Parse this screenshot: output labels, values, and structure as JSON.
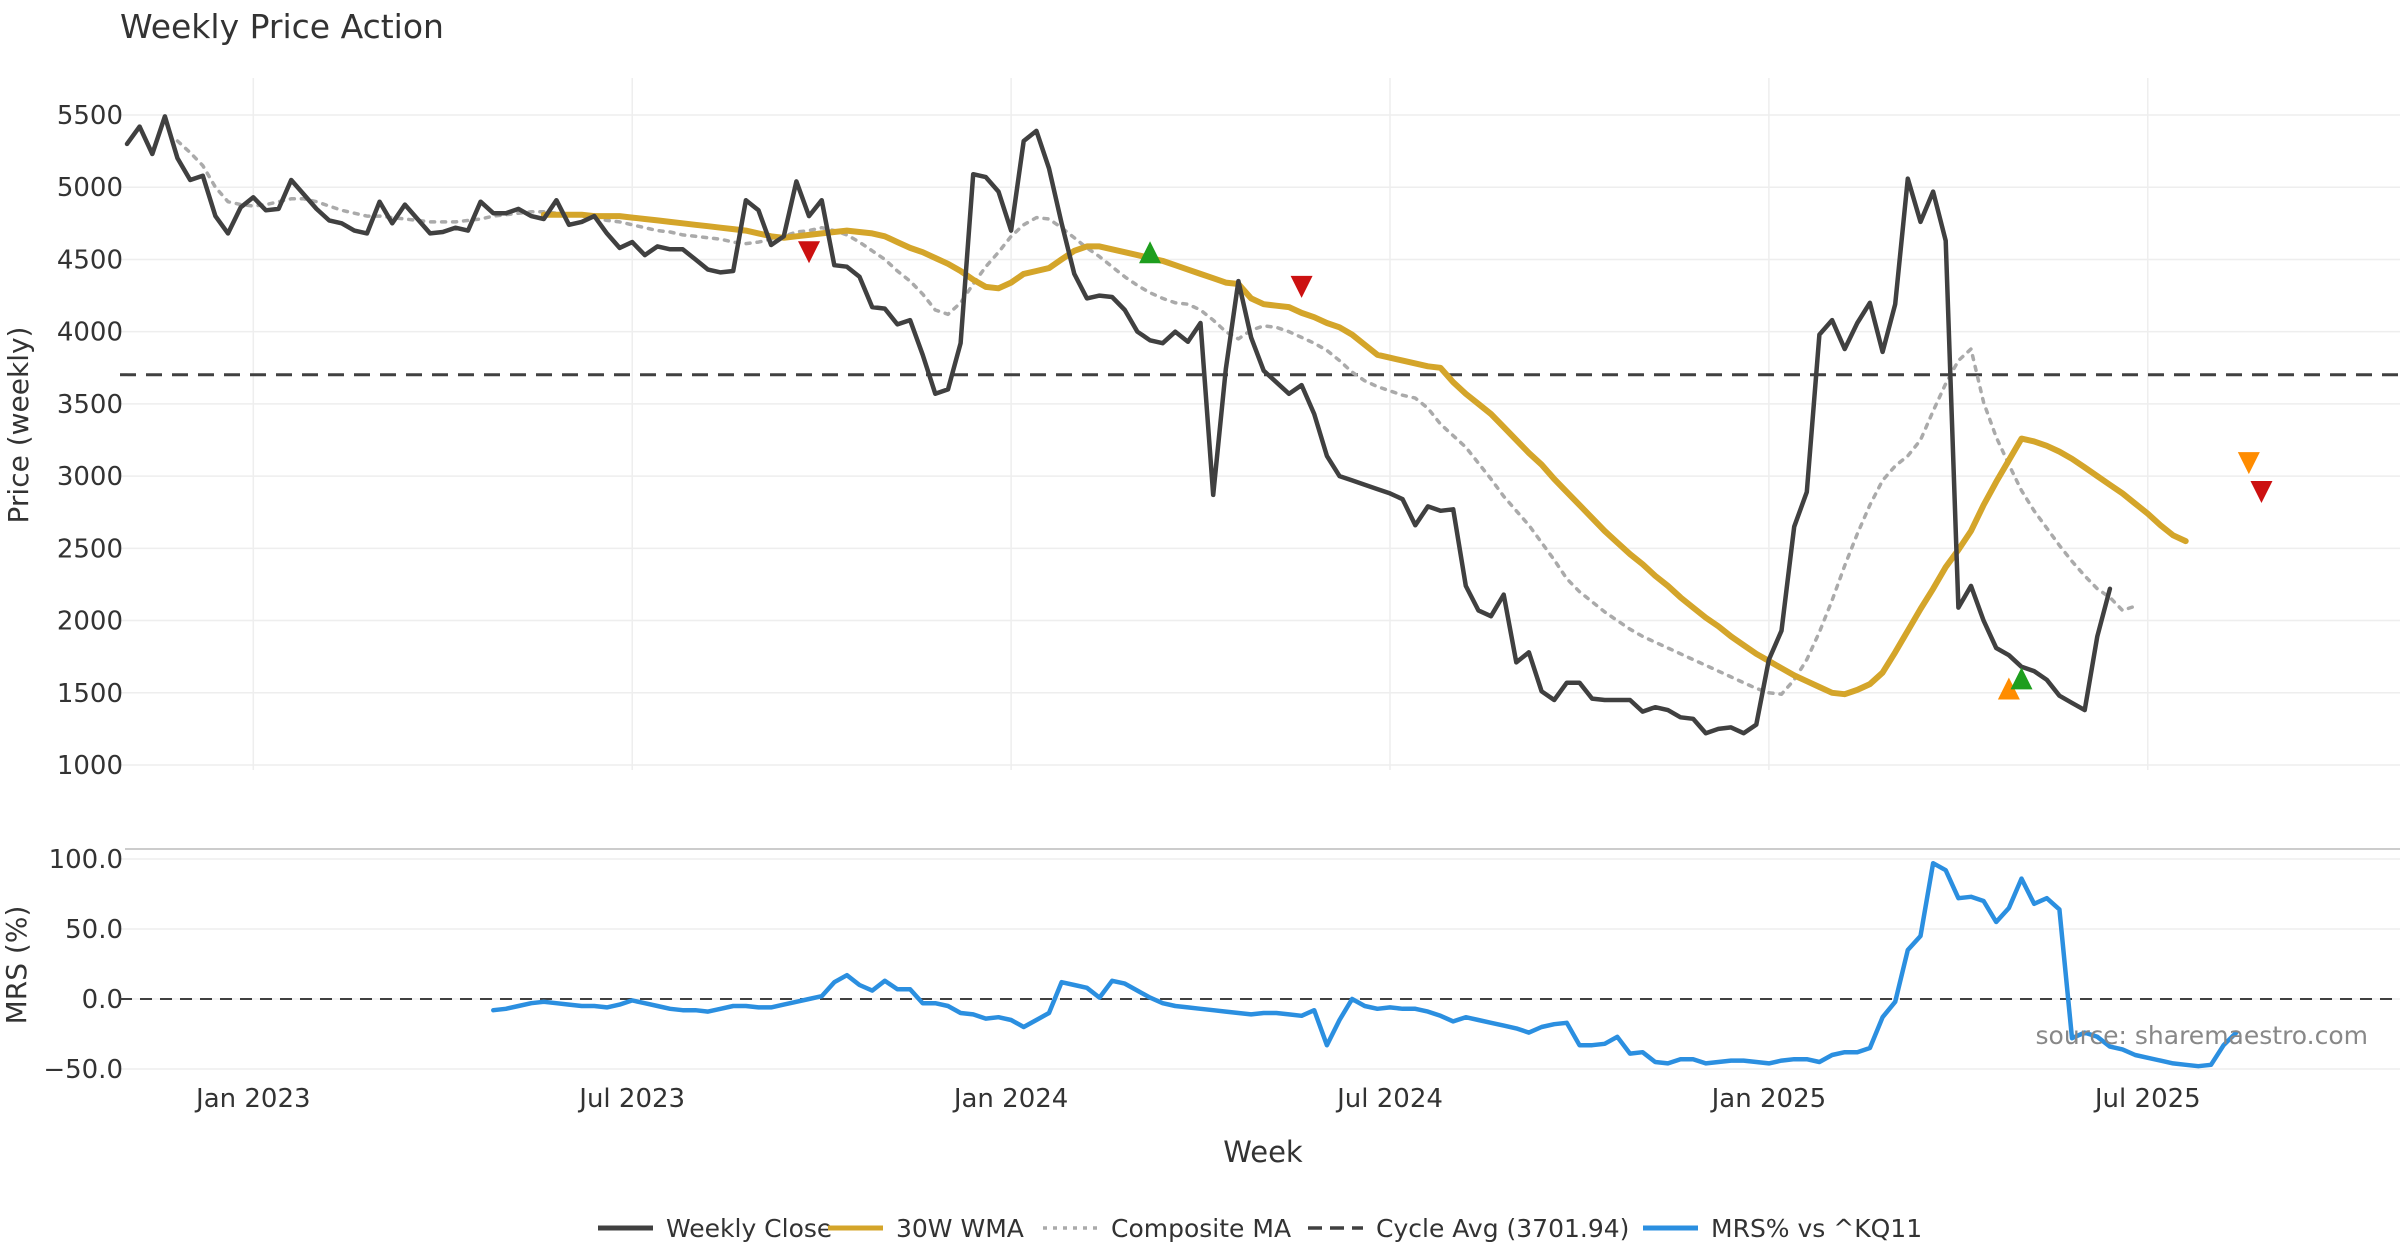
{
  "chart_data": {
    "type": "line",
    "title": "Weekly Price Action",
    "xlabel": "Week",
    "source_note": "source: sharemaestro.com",
    "x_ticks": [
      "Jan 2023",
      "Jul 2023",
      "Jan 2024",
      "Jul 2024",
      "Jan 2025",
      "Jul 2025"
    ],
    "x_tick_weeks": [
      10,
      40,
      70,
      100,
      130,
      160
    ],
    "legend": [
      {
        "label": "Weekly Close",
        "style": "solid",
        "color": "#404040"
      },
      {
        "label": "30W WMA",
        "style": "solid",
        "color": "#d4a52a"
      },
      {
        "label": "Composite MA",
        "style": "dotted",
        "color": "#aaaaaa"
      },
      {
        "label": "Cycle Avg (3701.94)",
        "style": "dashed",
        "color": "#404040"
      },
      {
        "label": "MRS% vs ^KQ11",
        "style": "solid",
        "color": "#2b8fe0"
      }
    ],
    "price_panel": {
      "ylabel": "Price (weekly)",
      "ylim": [
        1000,
        5500
      ],
      "y_ticks": [
        "1000",
        "1500",
        "2000",
        "2500",
        "3000",
        "3500",
        "4000",
        "4500",
        "5000",
        "5500"
      ],
      "cycle_avg": 3701.94,
      "series": [
        {
          "name": "Weekly Close",
          "color": "#404040",
          "style": "solid",
          "start_week": 0,
          "values": [
            5300,
            5420,
            5230,
            5490,
            5200,
            5050,
            5080,
            4800,
            4680,
            4860,
            4930,
            4840,
            4850,
            5050,
            4950,
            4850,
            4770,
            4750,
            4700,
            4680,
            4900,
            4750,
            4880,
            4780,
            4680,
            4690,
            4720,
            4700,
            4900,
            4820,
            4820,
            4850,
            4800,
            4780,
            4910,
            4740,
            4760,
            4800,
            4680,
            4580,
            4620,
            4530,
            4590,
            4570,
            4570,
            4500,
            4430,
            4410,
            4420,
            4910,
            4840,
            4600,
            4660,
            5040,
            4800,
            4910,
            4460,
            4450,
            4380,
            4170,
            4160,
            4050,
            4080,
            3840,
            3570,
            3600,
            3920,
            5090,
            5070,
            4970,
            4700,
            5320,
            5390,
            5130,
            4750,
            4400,
            4230,
            4250,
            4240,
            4150,
            4000,
            3940,
            3920,
            4000,
            3930,
            4060,
            2870,
            3740,
            4350,
            3960,
            3730,
            3650,
            3570,
            3630,
            3430,
            3140,
            3000,
            2970,
            2940,
            2910,
            2880,
            2840,
            2660,
            2790,
            2760,
            2770,
            2240,
            2070,
            2030,
            2180,
            1710,
            1780,
            1510,
            1450,
            1570,
            1570,
            1460,
            1450,
            1450,
            1450,
            1370,
            1400,
            1380,
            1330,
            1320,
            1220,
            1250,
            1260,
            1220,
            1280,
            1730,
            1930,
            2650,
            2890,
            3980,
            4080,
            3880,
            4060,
            4200,
            3860,
            4190,
            5060,
            4760,
            4970,
            4630,
            2090,
            2240,
            2000,
            1810,
            1760,
            1680,
            1650,
            1590,
            1480,
            1430,
            1380,
            1890,
            2220
          ]
        },
        {
          "name": "Composite MA",
          "color": "#aaaaaa",
          "style": "dotted",
          "start_week": 4,
          "values": [
            5320,
            5240,
            5150,
            5000,
            4900,
            4880,
            4870,
            4880,
            4900,
            4920,
            4920,
            4900,
            4870,
            4840,
            4820,
            4800,
            4800,
            4790,
            4780,
            4770,
            4760,
            4760,
            4760,
            4770,
            4780,
            4800,
            4810,
            4820,
            4830,
            4830,
            4820,
            4810,
            4800,
            4790,
            4770,
            4760,
            4740,
            4720,
            4700,
            4690,
            4670,
            4660,
            4650,
            4640,
            4620,
            4610,
            4620,
            4640,
            4660,
            4690,
            4700,
            4720,
            4700,
            4670,
            4620,
            4560,
            4500,
            4420,
            4350,
            4260,
            4150,
            4120,
            4200,
            4330,
            4450,
            4550,
            4660,
            4740,
            4790,
            4780,
            4720,
            4650,
            4580,
            4520,
            4450,
            4380,
            4320,
            4270,
            4230,
            4200,
            4190,
            4150,
            4080,
            4000,
            3950,
            4010,
            4040,
            4030,
            4000,
            3960,
            3920,
            3870,
            3800,
            3720,
            3660,
            3620,
            3590,
            3560,
            3540,
            3470,
            3360,
            3280,
            3200,
            3090,
            2980,
            2860,
            2760,
            2660,
            2540,
            2420,
            2290,
            2200,
            2130,
            2060,
            2000,
            1940,
            1890,
            1850,
            1810,
            1770,
            1730,
            1690,
            1650,
            1610,
            1570,
            1530,
            1500,
            1490,
            1590,
            1730,
            1920,
            2140,
            2380,
            2600,
            2800,
            2970,
            3070,
            3140,
            3250,
            3450,
            3640,
            3800,
            3880,
            3510,
            3270,
            3080,
            2900,
            2760,
            2640,
            2520,
            2410,
            2310,
            2220,
            2160,
            2070,
            2100
          ]
        },
        {
          "name": "30W WMA",
          "color": "#d4a52a",
          "style": "solid",
          "start_week": 33,
          "values": [
            4810,
            4810,
            4810,
            4810,
            4800,
            4800,
            4800,
            4790,
            4780,
            4770,
            4760,
            4750,
            4740,
            4730,
            4720,
            4710,
            4700,
            4680,
            4660,
            4650,
            4660,
            4670,
            4680,
            4690,
            4700,
            4690,
            4680,
            4660,
            4620,
            4580,
            4550,
            4510,
            4470,
            4420,
            4360,
            4310,
            4300,
            4340,
            4400,
            4420,
            4440,
            4500,
            4560,
            4590,
            4590,
            4570,
            4550,
            4530,
            4510,
            4490,
            4460,
            4430,
            4400,
            4370,
            4340,
            4330,
            4230,
            4190,
            4180,
            4170,
            4130,
            4100,
            4060,
            4030,
            3980,
            3910,
            3840,
            3820,
            3800,
            3780,
            3760,
            3750,
            3650,
            3570,
            3500,
            3430,
            3340,
            3250,
            3160,
            3080,
            2980,
            2890,
            2800,
            2710,
            2620,
            2540,
            2460,
            2390,
            2310,
            2240,
            2160,
            2090,
            2020,
            1960,
            1890,
            1830,
            1770,
            1720,
            1670,
            1620,
            1580,
            1540,
            1500,
            1490,
            1520,
            1560,
            1640,
            1780,
            1930,
            2080,
            2220,
            2370,
            2490,
            2620,
            2800,
            2960,
            3110,
            3260,
            3240,
            3210,
            3170,
            3120,
            3060,
            3000,
            2940,
            2880,
            2810,
            2740,
            2660,
            2590,
            2550
          ]
        }
      ],
      "signals": [
        {
          "type": "sell",
          "color": "#cc1111",
          "week": 54,
          "value": 4550
        },
        {
          "type": "buy",
          "color": "#1e9e1e",
          "week": 81,
          "value": 4550
        },
        {
          "type": "sell",
          "color": "#cc1111",
          "week": 93,
          "value": 4310
        },
        {
          "type": "caution",
          "color": "#ff8c00",
          "week": 149,
          "value": 1530
        },
        {
          "type": "buy",
          "color": "#1e9e1e",
          "week": 150,
          "value": 1600
        },
        {
          "type": "caution",
          "color": "#ff8c00",
          "week": 168,
          "value": 3090
        },
        {
          "type": "sell",
          "color": "#cc1111",
          "week": 169,
          "value": 2890
        }
      ]
    },
    "mrs_panel": {
      "ylabel": "MRS (%)",
      "ylim": [
        -50,
        100
      ],
      "y_ticks": [
        "−50.0",
        "0.0",
        "50.0",
        "100.0"
      ],
      "y_tick_values": [
        -50,
        0,
        50,
        100
      ],
      "zero_line": 0,
      "series": [
        {
          "name": "MRS% vs ^KQ11",
          "color": "#2b8fe0",
          "style": "solid",
          "start_week": 29,
          "values": [
            -8,
            -7,
            -5,
            -3,
            -2,
            -3,
            -4,
            -5,
            -5,
            -6,
            -4,
            -1,
            -3,
            -5,
            -7,
            -8,
            -8,
            -9,
            -7,
            -5,
            -5,
            -6,
            -6,
            -4,
            -2,
            0,
            2,
            12,
            17,
            10,
            6,
            13,
            7,
            7,
            -3,
            -3,
            -5,
            -10,
            -11,
            -14,
            -13,
            -15,
            -20,
            -15,
            -10,
            12,
            10,
            8,
            1,
            13,
            11,
            6,
            1,
            -3,
            -5,
            -6,
            -7,
            -8,
            -9,
            -10,
            -11,
            -10,
            -10,
            -11,
            -12,
            -8,
            -33,
            -15,
            0,
            -5,
            -7,
            -6,
            -7,
            -7,
            -9,
            -12,
            -16,
            -13,
            -15,
            -17,
            -19,
            -21,
            -24,
            -20,
            -18,
            -17,
            -33,
            -33,
            -32,
            -27,
            -39,
            -38,
            -45,
            -46,
            -43,
            -43,
            -46,
            -45,
            -44,
            -44,
            -45,
            -46,
            -44,
            -43,
            -43,
            -45,
            -40,
            -38,
            -38,
            -35,
            -13,
            -2,
            35,
            45,
            97,
            92,
            72,
            73,
            70,
            55,
            65,
            86,
            68,
            72,
            64,
            -28,
            -24,
            -27,
            -34,
            -36,
            -40,
            -42,
            -44,
            -46,
            -47,
            -48,
            -47,
            -33,
            -24
          ]
        }
      ]
    }
  }
}
